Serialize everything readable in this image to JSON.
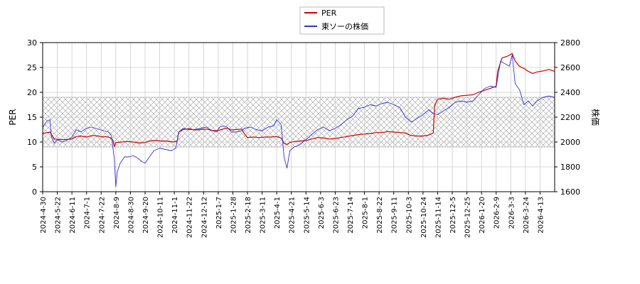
{
  "chart_data": {
    "type": "line",
    "legend_position": "top-center",
    "grid": true,
    "hatch_band": {
      "axis": "left",
      "range": [
        9,
        19
      ]
    },
    "left_axis": {
      "label": "PER",
      "ylim": [
        0,
        30
      ],
      "ticks": [
        0,
        5,
        10,
        15,
        20,
        25,
        30
      ]
    },
    "right_axis": {
      "label": "株価",
      "ylim": [
        1600,
        2800
      ],
      "ticks": [
        1600,
        1800,
        2000,
        2200,
        2400,
        2600,
        2800
      ]
    },
    "x_tick_labels": [
      "2024-4-30",
      "2024-5-22",
      "2024-6-11",
      "2024-7-1",
      "2024-7-22",
      "2024-8-9",
      "2024-8-30",
      "2024-9-20",
      "2024-10-11",
      "2024-11-1",
      "2024-11-22",
      "2024-12-12",
      "2025-1-7",
      "2025-1-28",
      "2025-2-18",
      "2025-3-11",
      "2025-4-1",
      "2025-4-21",
      "2025-5-14",
      "2025-6-3",
      "2025-6-23",
      "2025-7-14",
      "2025-8-1",
      "2025-8-22",
      "2025-9-11",
      "2025-10-3",
      "2025-10-24",
      "2025-11-14",
      "2025-12-5",
      "2025-12-25",
      "2026-1-20",
      "2026-2-9",
      "2026-3-3",
      "2026-3-24",
      "2026-4-13"
    ],
    "x_range": [
      0,
      35
    ],
    "series": [
      {
        "name": "PER",
        "axis": "left",
        "color": "#cc0000",
        "points": [
          [
            0,
            11.7
          ],
          [
            0.5,
            12.0
          ],
          [
            0.8,
            10.6
          ],
          [
            1.2,
            10.5
          ],
          [
            1.6,
            10.5
          ],
          [
            2.0,
            10.6
          ],
          [
            2.3,
            11.1
          ],
          [
            2.6,
            11.2
          ],
          [
            3.0,
            11.0
          ],
          [
            3.4,
            11.3
          ],
          [
            3.8,
            11.2
          ],
          [
            4.1,
            11.0
          ],
          [
            4.3,
            11.1
          ],
          [
            4.6,
            10.9
          ],
          [
            4.8,
            10.4
          ],
          [
            4.9,
            9.1
          ],
          [
            5.0,
            9.9
          ],
          [
            5.4,
            10.0
          ],
          [
            5.8,
            10.1
          ],
          [
            6.2,
            10.0
          ],
          [
            6.6,
            9.8
          ],
          [
            7.0,
            9.9
          ],
          [
            7.3,
            10.2
          ],
          [
            7.7,
            10.3
          ],
          [
            8.1,
            10.2
          ],
          [
            8.5,
            10.2
          ],
          [
            8.9,
            10.0
          ],
          [
            9.2,
            10.2
          ],
          [
            9.3,
            12.0
          ],
          [
            9.6,
            12.5
          ],
          [
            10.0,
            12.7
          ],
          [
            10.4,
            12.4
          ],
          [
            10.8,
            12.5
          ],
          [
            11.2,
            12.6
          ],
          [
            11.6,
            12.3
          ],
          [
            12.0,
            12.3
          ],
          [
            12.3,
            12.6
          ],
          [
            12.6,
            12.8
          ],
          [
            12.9,
            12.4
          ],
          [
            13.2,
            12.5
          ],
          [
            13.6,
            12.6
          ],
          [
            13.8,
            11.6
          ],
          [
            14.0,
            10.9
          ],
          [
            14.4,
            11.0
          ],
          [
            14.8,
            10.9
          ],
          [
            15.2,
            11.0
          ],
          [
            15.6,
            11.0
          ],
          [
            16.0,
            11.1
          ],
          [
            16.3,
            10.8
          ],
          [
            16.5,
            9.7
          ],
          [
            16.7,
            9.5
          ],
          [
            16.9,
            9.9
          ],
          [
            17.2,
            10.1
          ],
          [
            17.6,
            10.2
          ],
          [
            18.0,
            10.3
          ],
          [
            18.4,
            10.6
          ],
          [
            18.8,
            10.9
          ],
          [
            19.2,
            10.8
          ],
          [
            19.6,
            10.6
          ],
          [
            20.0,
            10.7
          ],
          [
            20.4,
            10.9
          ],
          [
            20.8,
            11.1
          ],
          [
            21.2,
            11.3
          ],
          [
            21.6,
            11.5
          ],
          [
            22.0,
            11.6
          ],
          [
            22.4,
            11.7
          ],
          [
            22.8,
            11.9
          ],
          [
            23.2,
            11.9
          ],
          [
            23.6,
            12.1
          ],
          [
            24.0,
            12.0
          ],
          [
            24.4,
            11.9
          ],
          [
            24.8,
            11.8
          ],
          [
            25.2,
            11.3
          ],
          [
            25.6,
            11.2
          ],
          [
            26.0,
            11.2
          ],
          [
            26.4,
            11.4
          ],
          [
            26.7,
            11.8
          ],
          [
            26.8,
            17.4
          ],
          [
            27.0,
            18.6
          ],
          [
            27.4,
            18.8
          ],
          [
            27.8,
            18.6
          ],
          [
            28.2,
            19.0
          ],
          [
            28.6,
            19.3
          ],
          [
            29.0,
            19.4
          ],
          [
            29.4,
            19.5
          ],
          [
            29.8,
            20.0
          ],
          [
            30.2,
            20.4
          ],
          [
            30.6,
            20.8
          ],
          [
            31.0,
            21.2
          ],
          [
            31.1,
            24.2
          ],
          [
            31.4,
            26.9
          ],
          [
            31.8,
            27.3
          ],
          [
            32.1,
            27.8
          ],
          [
            32.3,
            26.3
          ],
          [
            32.6,
            25.2
          ],
          [
            32.9,
            24.8
          ],
          [
            33.2,
            24.2
          ],
          [
            33.5,
            23.8
          ],
          [
            33.8,
            24.1
          ],
          [
            34.2,
            24.3
          ],
          [
            34.6,
            24.6
          ],
          [
            35.0,
            24.2
          ]
        ]
      },
      {
        "name": "東ソーの株価",
        "axis": "right",
        "color": "#3333cc",
        "points": [
          [
            0,
            2120
          ],
          [
            0.3,
            2170
          ],
          [
            0.5,
            2180
          ],
          [
            0.6,
            2040
          ],
          [
            0.8,
            1990
          ],
          [
            1.0,
            2020
          ],
          [
            1.3,
            2000
          ],
          [
            1.6,
            2010
          ],
          [
            2.0,
            2040
          ],
          [
            2.3,
            2100
          ],
          [
            2.6,
            2080
          ],
          [
            3.0,
            2110
          ],
          [
            3.3,
            2120
          ],
          [
            3.6,
            2110
          ],
          [
            3.9,
            2100
          ],
          [
            4.2,
            2090
          ],
          [
            4.5,
            2080
          ],
          [
            4.7,
            2050
          ],
          [
            4.9,
            1860
          ],
          [
            5.0,
            1640
          ],
          [
            5.1,
            1760
          ],
          [
            5.3,
            1830
          ],
          [
            5.6,
            1880
          ],
          [
            5.9,
            1880
          ],
          [
            6.2,
            1890
          ],
          [
            6.5,
            1870
          ],
          [
            6.8,
            1840
          ],
          [
            7.0,
            1830
          ],
          [
            7.3,
            1880
          ],
          [
            7.6,
            1930
          ],
          [
            8.0,
            1950
          ],
          [
            8.4,
            1940
          ],
          [
            8.8,
            1930
          ],
          [
            9.1,
            1950
          ],
          [
            9.3,
            2080
          ],
          [
            9.6,
            2110
          ],
          [
            10.0,
            2100
          ],
          [
            10.4,
            2100
          ],
          [
            10.8,
            2110
          ],
          [
            11.2,
            2120
          ],
          [
            11.6,
            2090
          ],
          [
            11.9,
            2080
          ],
          [
            12.1,
            2120
          ],
          [
            12.4,
            2130
          ],
          [
            12.6,
            2120
          ],
          [
            12.9,
            2080
          ],
          [
            13.2,
            2080
          ],
          [
            13.6,
            2090
          ],
          [
            13.8,
            2110
          ],
          [
            14.2,
            2120
          ],
          [
            14.6,
            2100
          ],
          [
            15.0,
            2090
          ],
          [
            15.4,
            2120
          ],
          [
            15.8,
            2130
          ],
          [
            16.0,
            2180
          ],
          [
            16.3,
            2140
          ],
          [
            16.5,
            1880
          ],
          [
            16.7,
            1790
          ],
          [
            16.9,
            1930
          ],
          [
            17.2,
            1960
          ],
          [
            17.6,
            1980
          ],
          [
            18.0,
            2020
          ],
          [
            18.4,
            2060
          ],
          [
            18.8,
            2100
          ],
          [
            19.2,
            2120
          ],
          [
            19.6,
            2090
          ],
          [
            20.0,
            2110
          ],
          [
            20.4,
            2140
          ],
          [
            20.8,
            2180
          ],
          [
            21.2,
            2210
          ],
          [
            21.6,
            2270
          ],
          [
            22.0,
            2280
          ],
          [
            22.4,
            2300
          ],
          [
            22.8,
            2290
          ],
          [
            23.2,
            2310
          ],
          [
            23.6,
            2320
          ],
          [
            24.0,
            2300
          ],
          [
            24.4,
            2280
          ],
          [
            24.8,
            2200
          ],
          [
            25.2,
            2160
          ],
          [
            25.6,
            2190
          ],
          [
            26.0,
            2220
          ],
          [
            26.4,
            2260
          ],
          [
            26.7,
            2230
          ],
          [
            27.0,
            2220
          ],
          [
            27.4,
            2250
          ],
          [
            27.8,
            2280
          ],
          [
            28.2,
            2320
          ],
          [
            28.6,
            2330
          ],
          [
            29.0,
            2320
          ],
          [
            29.4,
            2330
          ],
          [
            29.8,
            2380
          ],
          [
            30.2,
            2430
          ],
          [
            30.6,
            2450
          ],
          [
            31.0,
            2440
          ],
          [
            31.3,
            2650
          ],
          [
            31.6,
            2630
          ],
          [
            31.9,
            2610
          ],
          [
            32.1,
            2700
          ],
          [
            32.3,
            2470
          ],
          [
            32.6,
            2420
          ],
          [
            32.9,
            2300
          ],
          [
            33.2,
            2330
          ],
          [
            33.5,
            2290
          ],
          [
            33.8,
            2330
          ],
          [
            34.2,
            2360
          ],
          [
            34.6,
            2370
          ],
          [
            35.0,
            2360
          ]
        ]
      }
    ]
  }
}
